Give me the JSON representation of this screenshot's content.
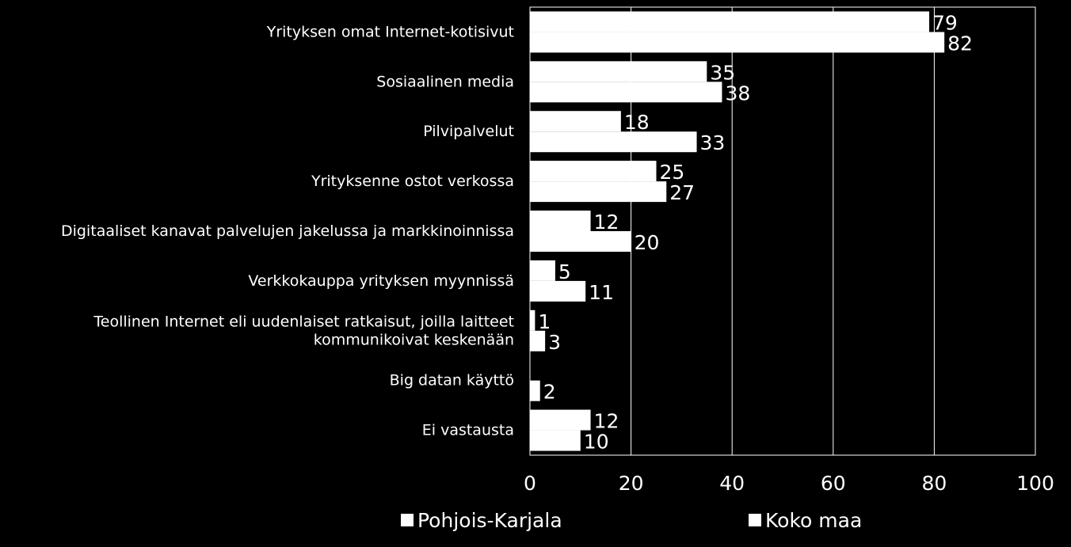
{
  "chart_data": {
    "type": "bar",
    "orientation": "horizontal",
    "categories": [
      "Yrityksen omat Internet-kotisivut",
      "Sosiaalinen media",
      "Pilvipalvelut",
      "Yrityksenne ostot verkossa",
      "Digitaaliset kanavat palvelujen jakelussa ja markkinoinnissa",
      "Verkkokauppa yrityksen myynnissä",
      "Teollinen Internet eli uudenlaiset ratkaisut, joilla laitteet kommunikoivat keskenään",
      "Big datan käyttö",
      "Ei vastausta"
    ],
    "series": [
      {
        "name": "Pohjois-Karjala",
        "values": [
          79,
          35,
          18,
          25,
          12,
          5,
          1,
          null,
          12
        ]
      },
      {
        "name": "Koko maa",
        "values": [
          82,
          38,
          33,
          27,
          20,
          11,
          3,
          2,
          10
        ]
      }
    ],
    "x_ticks": [
      "0",
      "20",
      "40",
      "60",
      "80",
      "100"
    ],
    "xlim": [
      0,
      100
    ],
    "grid": "vertical",
    "legend": "bottom",
    "colors": {
      "background": "#000000",
      "bars": "#ffffff",
      "grid": "#ffffff",
      "text": "#ffffff"
    }
  }
}
